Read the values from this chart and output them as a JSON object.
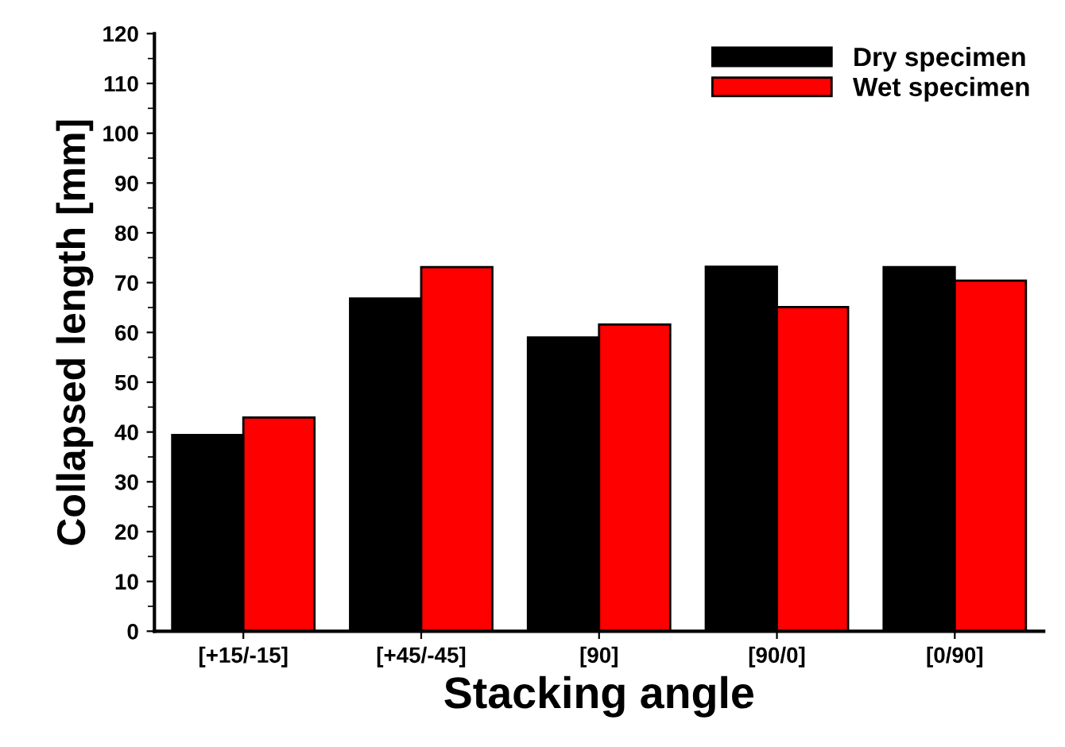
{
  "chart_data": {
    "type": "bar",
    "xlabel": "Stacking angle",
    "ylabel": "Collapsed length [mm]",
    "categories": [
      "[+15/-15]",
      "[+45/-45]",
      "[90]",
      "[90/0]",
      "[0/90]"
    ],
    "series": [
      {
        "name": "Dry specimen",
        "color": "#000000",
        "values": [
          39.4,
          66.8,
          59.0,
          73.2,
          73.1
        ]
      },
      {
        "name": "Wet specimen",
        "color": "#ff0000",
        "values": [
          42.9,
          73.1,
          61.6,
          65.1,
          70.4
        ]
      }
    ],
    "ylim": [
      0,
      120
    ],
    "yticks": [
      0,
      10,
      20,
      30,
      40,
      50,
      60,
      70,
      80,
      90,
      100,
      110,
      120
    ],
    "grid": false,
    "legend": "top right"
  }
}
